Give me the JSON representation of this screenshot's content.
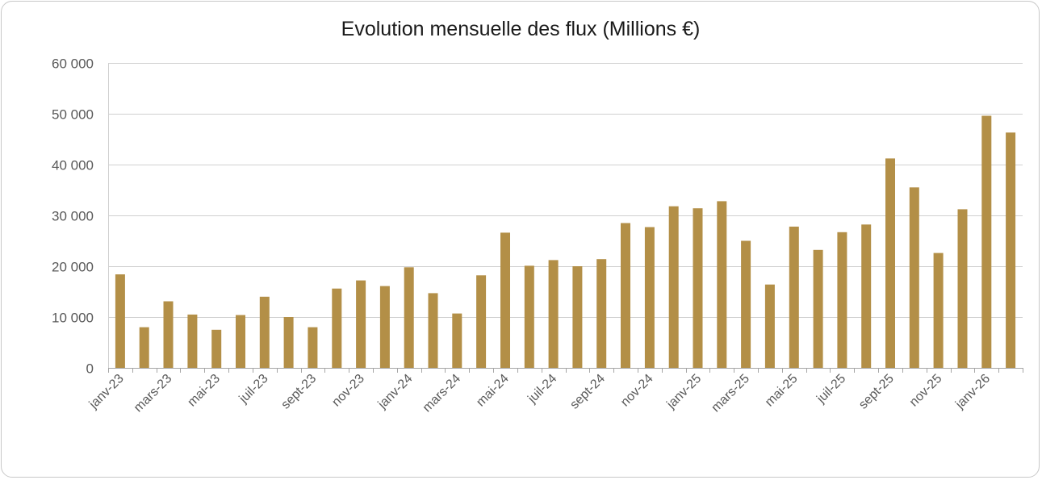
{
  "chart_data": {
    "type": "bar",
    "title": "Evolution mensuelle des flux (Millions €)",
    "xlabel": "",
    "ylabel": "",
    "ylim": [
      0,
      60000
    ],
    "yticks": [
      0,
      10000,
      20000,
      30000,
      40000,
      50000,
      60000
    ],
    "ytick_labels": [
      "0",
      "10 000",
      "20 000",
      "30 000",
      "40 000",
      "50 000",
      "60 000"
    ],
    "grid": true,
    "legend": "none",
    "bar_color": "#B38F47",
    "categories": [
      "janv-23",
      "févr-23",
      "mars-23",
      "avr-23",
      "mai-23",
      "juin-23",
      "juil-23",
      "août-23",
      "sept-23",
      "oct-23",
      "nov-23",
      "déc-23",
      "janv-24",
      "févr-24",
      "mars-24",
      "avr-24",
      "mai-24",
      "juin-24",
      "juil-24",
      "août-24",
      "sept-24",
      "oct-24",
      "nov-24",
      "déc-24",
      "janv-25",
      "févr-25",
      "mars-25",
      "avr-25",
      "mai-25",
      "juin-25",
      "juil-25",
      "août-25",
      "sept-25",
      "oct-25",
      "nov-25",
      "déc-25",
      "janv-26",
      "févr-26"
    ],
    "tick_labels": [
      "janv-23",
      "mars-23",
      "mai-23",
      "juil-23",
      "sept-23",
      "nov-23",
      "janv-24",
      "mars-24",
      "mai-24",
      "juil-24",
      "sept-24",
      "nov-24",
      "janv-25",
      "mars-25",
      "mai-25",
      "juil-25",
      "sept-25",
      "nov-25",
      "janv-26"
    ],
    "values": [
      18400,
      8000,
      13100,
      10500,
      7500,
      10400,
      14000,
      10000,
      8000,
      15600,
      17200,
      16100,
      19800,
      14700,
      10700,
      18200,
      26600,
      20100,
      21200,
      20000,
      21400,
      28500,
      27700,
      31800,
      31400,
      32800,
      25000,
      16400,
      27800,
      23200,
      26700,
      28200,
      41200,
      35500,
      22600,
      31200,
      49600,
      46300
    ]
  }
}
